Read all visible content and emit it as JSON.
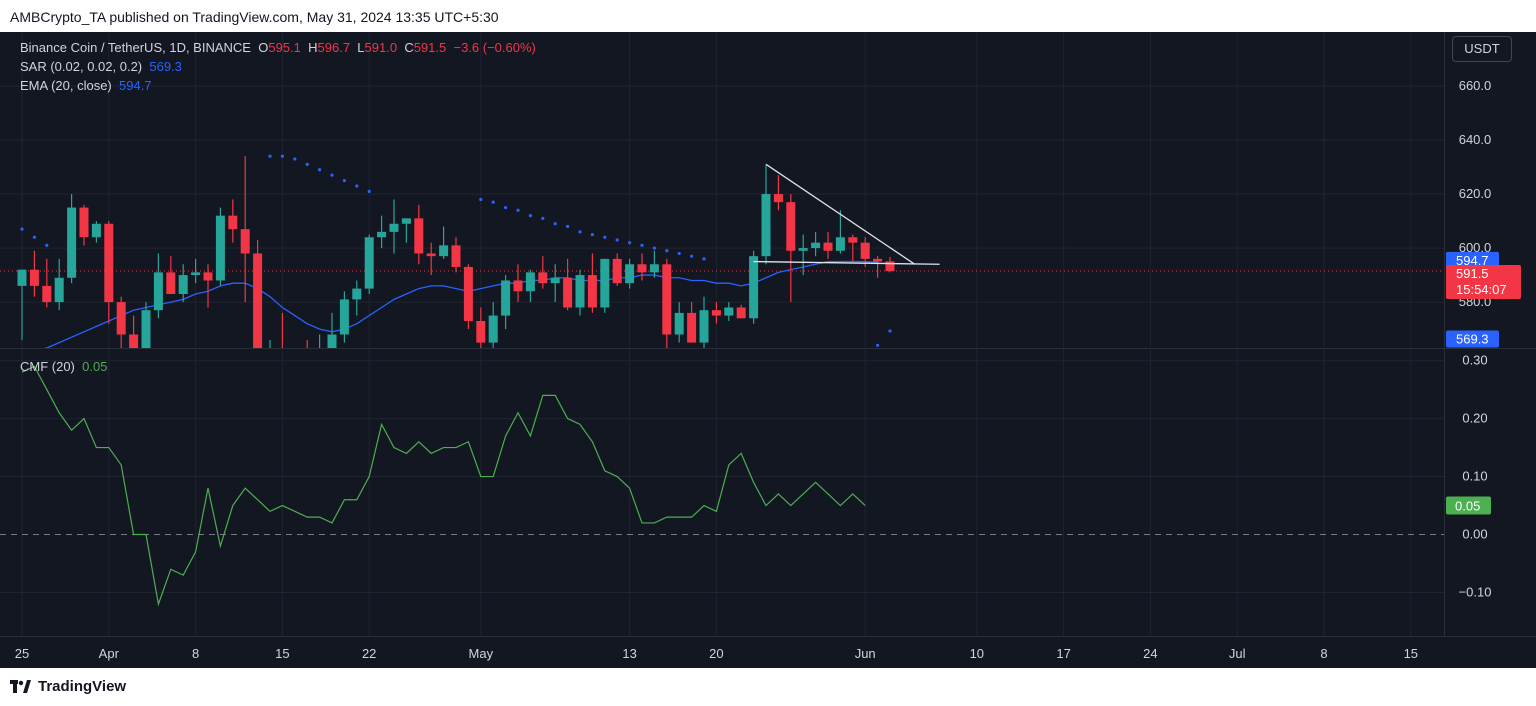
{
  "header": {
    "text": "AMBCrypto_TA published on TradingView.com, May 31, 2024 13:35 UTC+5:30"
  },
  "footer": {
    "brand": "TradingView"
  },
  "legend": {
    "symbol": "Binance Coin / TetherUS, 1D, BINANCE",
    "o_label": "O",
    "o": "595.1",
    "h_label": "H",
    "h": "596.7",
    "l_label": "L",
    "l": "591.0",
    "c_label": "C",
    "c": "591.5",
    "chg": "−3.6 (−0.60%)",
    "sar_label": "SAR (0.02, 0.02, 0.2)",
    "sar_val": "569.3",
    "ema_label": "EMA (20, close)",
    "ema_val": "594.7",
    "cmf_label": "CMF (20)",
    "cmf_val": "0.05"
  },
  "currency_button": "USDT",
  "colors": {
    "up": "#26a69a",
    "down": "#f23645",
    "ema": "#2962ff",
    "sar": "#2962ff",
    "cmf": "#4caf50",
    "bg": "#131722",
    "grid": "#1f2430"
  },
  "chart_data": [
    {
      "type": "candlestick",
      "title": "Binance Coin / TetherUS, 1D, BINANCE",
      "ylim": [
        563,
        680
      ],
      "y_ticks": [
        580.0,
        600.0,
        620.0,
        640.0,
        660.0
      ],
      "x_tick_labels": [
        "25",
        "Apr",
        "8",
        "15",
        "22",
        "May",
        "13",
        "20",
        "Jun",
        "10",
        "17",
        "24",
        "Jul",
        "8",
        "15"
      ],
      "x_tick_dates": [
        "2024-03-25",
        "2024-04-01",
        "2024-04-08",
        "2024-04-15",
        "2024-04-22",
        "2024-05-01",
        "2024-05-13",
        "2024-05-20",
        "2024-06-01",
        "2024-06-10",
        "2024-06-17",
        "2024-06-24",
        "2024-07-01",
        "2024-07-08",
        "2024-07-15"
      ],
      "ohlc": [
        {
          "d": "2024-03-25",
          "o": 586,
          "h": 592,
          "l": 566,
          "c": 592
        },
        {
          "d": "2024-03-26",
          "o": 592,
          "h": 599,
          "l": 582,
          "c": 586
        },
        {
          "d": "2024-03-27",
          "o": 586,
          "h": 596,
          "l": 578,
          "c": 580
        },
        {
          "d": "2024-03-28",
          "o": 580,
          "h": 596,
          "l": 577,
          "c": 589
        },
        {
          "d": "2024-03-29",
          "o": 589,
          "h": 620,
          "l": 587,
          "c": 615
        },
        {
          "d": "2024-03-30",
          "o": 615,
          "h": 616,
          "l": 601,
          "c": 604
        },
        {
          "d": "2024-03-31",
          "o": 604,
          "h": 610,
          "l": 602,
          "c": 609
        },
        {
          "d": "2024-04-01",
          "o": 609,
          "h": 610,
          "l": 572,
          "c": 580
        },
        {
          "d": "2024-04-02",
          "o": 580,
          "h": 582,
          "l": 560,
          "c": 568
        },
        {
          "d": "2024-04-03",
          "o": 568,
          "h": 575,
          "l": 558,
          "c": 563
        },
        {
          "d": "2024-04-04",
          "o": 563,
          "h": 580,
          "l": 560,
          "c": 577
        },
        {
          "d": "2024-04-05",
          "o": 577,
          "h": 598,
          "l": 574,
          "c": 591
        },
        {
          "d": "2024-04-06",
          "o": 591,
          "h": 597,
          "l": 583,
          "c": 583
        },
        {
          "d": "2024-04-07",
          "o": 583,
          "h": 594,
          "l": 580,
          "c": 590
        },
        {
          "d": "2024-04-08",
          "o": 590,
          "h": 596,
          "l": 587,
          "c": 591
        },
        {
          "d": "2024-04-09",
          "o": 591,
          "h": 594,
          "l": 578,
          "c": 588
        },
        {
          "d": "2024-04-10",
          "o": 588,
          "h": 615,
          "l": 586,
          "c": 612
        },
        {
          "d": "2024-04-11",
          "o": 612,
          "h": 618,
          "l": 602,
          "c": 607
        },
        {
          "d": "2024-04-12",
          "o": 607,
          "h": 634,
          "l": 580,
          "c": 598
        },
        {
          "d": "2024-04-13",
          "o": 598,
          "h": 603,
          "l": 550,
          "c": 555
        },
        {
          "d": "2024-04-14",
          "o": 555,
          "h": 566,
          "l": 542,
          "c": 562
        },
        {
          "d": "2024-04-15",
          "o": 562,
          "h": 576,
          "l": 550,
          "c": 556
        },
        {
          "d": "2024-04-16",
          "o": 556,
          "h": 562,
          "l": 545,
          "c": 558
        },
        {
          "d": "2024-04-17",
          "o": 558,
          "h": 566,
          "l": 546,
          "c": 551
        },
        {
          "d": "2024-04-18",
          "o": 551,
          "h": 568,
          "l": 548,
          "c": 563
        },
        {
          "d": "2024-04-19",
          "o": 563,
          "h": 576,
          "l": 540,
          "c": 568
        },
        {
          "d": "2024-04-20",
          "o": 568,
          "h": 584,
          "l": 565,
          "c": 581
        },
        {
          "d": "2024-04-21",
          "o": 581,
          "h": 588,
          "l": 575,
          "c": 585
        },
        {
          "d": "2024-04-22",
          "o": 585,
          "h": 605,
          "l": 583,
          "c": 604
        },
        {
          "d": "2024-04-23",
          "o": 604,
          "h": 612,
          "l": 600,
          "c": 606
        },
        {
          "d": "2024-04-24",
          "o": 606,
          "h": 618,
          "l": 598,
          "c": 609
        },
        {
          "d": "2024-04-25",
          "o": 609,
          "h": 611,
          "l": 602,
          "c": 611
        },
        {
          "d": "2024-04-26",
          "o": 611,
          "h": 616,
          "l": 594,
          "c": 598
        },
        {
          "d": "2024-04-27",
          "o": 598,
          "h": 602,
          "l": 590,
          "c": 597
        },
        {
          "d": "2024-04-28",
          "o": 597,
          "h": 608,
          "l": 596,
          "c": 601
        },
        {
          "d": "2024-04-29",
          "o": 601,
          "h": 604,
          "l": 591,
          "c": 593
        },
        {
          "d": "2024-04-30",
          "o": 593,
          "h": 594,
          "l": 570,
          "c": 573
        },
        {
          "d": "2024-05-01",
          "o": 573,
          "h": 578,
          "l": 554,
          "c": 565
        },
        {
          "d": "2024-05-02",
          "o": 565,
          "h": 580,
          "l": 560,
          "c": 575
        },
        {
          "d": "2024-05-03",
          "o": 575,
          "h": 590,
          "l": 570,
          "c": 588
        },
        {
          "d": "2024-05-04",
          "o": 588,
          "h": 594,
          "l": 580,
          "c": 584
        },
        {
          "d": "2024-05-05",
          "o": 584,
          "h": 592,
          "l": 580,
          "c": 591
        },
        {
          "d": "2024-05-06",
          "o": 591,
          "h": 597,
          "l": 585,
          "c": 587
        },
        {
          "d": "2024-05-07",
          "o": 587,
          "h": 594,
          "l": 580,
          "c": 589
        },
        {
          "d": "2024-05-08",
          "o": 589,
          "h": 596,
          "l": 577,
          "c": 578
        },
        {
          "d": "2024-05-09",
          "o": 578,
          "h": 592,
          "l": 575,
          "c": 590
        },
        {
          "d": "2024-05-10",
          "o": 590,
          "h": 598,
          "l": 576,
          "c": 578
        },
        {
          "d": "2024-05-11",
          "o": 578,
          "h": 596,
          "l": 576,
          "c": 596
        },
        {
          "d": "2024-05-12",
          "o": 596,
          "h": 598,
          "l": 586,
          "c": 587
        },
        {
          "d": "2024-05-13",
          "o": 587,
          "h": 596,
          "l": 585,
          "c": 594
        },
        {
          "d": "2024-05-14",
          "o": 594,
          "h": 598,
          "l": 588,
          "c": 591
        },
        {
          "d": "2024-05-15",
          "o": 591,
          "h": 599,
          "l": 589,
          "c": 594
        },
        {
          "d": "2024-05-16",
          "o": 594,
          "h": 596,
          "l": 560,
          "c": 568
        },
        {
          "d": "2024-05-17",
          "o": 568,
          "h": 580,
          "l": 565,
          "c": 576
        },
        {
          "d": "2024-05-18",
          "o": 576,
          "h": 580,
          "l": 566,
          "c": 565
        },
        {
          "d": "2024-05-19",
          "o": 565,
          "h": 582,
          "l": 563,
          "c": 577
        },
        {
          "d": "2024-05-20",
          "o": 577,
          "h": 580,
          "l": 572,
          "c": 575
        },
        {
          "d": "2024-05-21",
          "o": 575,
          "h": 580,
          "l": 573,
          "c": 578
        },
        {
          "d": "2024-05-22",
          "o": 578,
          "h": 579,
          "l": 574,
          "c": 574
        },
        {
          "d": "2024-05-23",
          "o": 574,
          "h": 599,
          "l": 572,
          "c": 597
        },
        {
          "d": "2024-05-24",
          "o": 597,
          "h": 631,
          "l": 594,
          "c": 620
        },
        {
          "d": "2024-05-25",
          "o": 620,
          "h": 627,
          "l": 614,
          "c": 617
        },
        {
          "d": "2024-05-26",
          "o": 617,
          "h": 620,
          "l": 580,
          "c": 599
        },
        {
          "d": "2024-05-27",
          "o": 599,
          "h": 605,
          "l": 590,
          "c": 600
        },
        {
          "d": "2024-05-28",
          "o": 600,
          "h": 606,
          "l": 597,
          "c": 602
        },
        {
          "d": "2024-05-29",
          "o": 602,
          "h": 606,
          "l": 596,
          "c": 599
        },
        {
          "d": "2024-05-30",
          "o": 599,
          "h": 614,
          "l": 598,
          "c": 604
        },
        {
          "d": "2024-05-31",
          "o": 604,
          "h": 605,
          "l": 595,
          "c": 602
        },
        {
          "d": "2024-06-01",
          "o": 602,
          "h": 604,
          "l": 593,
          "c": 596
        },
        {
          "d": "2024-06-02",
          "o": 596,
          "h": 597,
          "l": 589,
          "c": 595
        },
        {
          "d": "2024-06-03",
          "o": 595.1,
          "h": 596.7,
          "l": 591.0,
          "c": 591.5
        }
      ],
      "ema_20": [
        560,
        562,
        563,
        565,
        567,
        569,
        571,
        573,
        575,
        577,
        578,
        579,
        580,
        581,
        583,
        584,
        586,
        587,
        587,
        585,
        582,
        578,
        575,
        572,
        570,
        569,
        570,
        572,
        575,
        578,
        581,
        583,
        585,
        586,
        586,
        585,
        584,
        585,
        586,
        587,
        587,
        588,
        588,
        589,
        589,
        588,
        588,
        588,
        589,
        589,
        590,
        590,
        589,
        589,
        588,
        588,
        587,
        587,
        586,
        587,
        589,
        591,
        592,
        593,
        594,
        595,
        595,
        595,
        595,
        594.7
      ],
      "sar": [
        {
          "d": "2024-03-25",
          "v": 607
        },
        {
          "d": "2024-03-26",
          "v": 604
        },
        {
          "d": "2024-03-27",
          "v": 601
        },
        {
          "d": "2024-04-14",
          "v": 634
        },
        {
          "d": "2024-04-15",
          "v": 634
        },
        {
          "d": "2024-04-16",
          "v": 633
        },
        {
          "d": "2024-04-17",
          "v": 631
        },
        {
          "d": "2024-04-18",
          "v": 629
        },
        {
          "d": "2024-04-19",
          "v": 627
        },
        {
          "d": "2024-04-20",
          "v": 625
        },
        {
          "d": "2024-04-21",
          "v": 623
        },
        {
          "d": "2024-04-22",
          "v": 621
        },
        {
          "d": "2024-05-01",
          "v": 618
        },
        {
          "d": "2024-05-02",
          "v": 617
        },
        {
          "d": "2024-05-03",
          "v": 615
        },
        {
          "d": "2024-05-04",
          "v": 614
        },
        {
          "d": "2024-05-05",
          "v": 612
        },
        {
          "d": "2024-05-06",
          "v": 611
        },
        {
          "d": "2024-05-07",
          "v": 609
        },
        {
          "d": "2024-05-08",
          "v": 608
        },
        {
          "d": "2024-05-09",
          "v": 606
        },
        {
          "d": "2024-05-10",
          "v": 605
        },
        {
          "d": "2024-05-11",
          "v": 604
        },
        {
          "d": "2024-05-12",
          "v": 603
        },
        {
          "d": "2024-05-13",
          "v": 602
        },
        {
          "d": "2024-05-14",
          "v": 601
        },
        {
          "d": "2024-05-15",
          "v": 600
        },
        {
          "d": "2024-05-16",
          "v": 599
        },
        {
          "d": "2024-05-17",
          "v": 598
        },
        {
          "d": "2024-05-18",
          "v": 597
        },
        {
          "d": "2024-05-19",
          "v": 596
        },
        {
          "d": "2024-06-02",
          "v": 564
        },
        {
          "d": "2024-06-03",
          "v": 569.3
        }
      ],
      "trendline": {
        "from": {
          "d": "2024-05-24",
          "v": 631
        },
        "to": {
          "d": "2024-06-05",
          "v": 594
        }
      },
      "support_line": {
        "from": {
          "d": "2024-05-23",
          "v": 595
        },
        "to": {
          "d": "2024-06-07",
          "v": 594
        }
      },
      "last_price_line": 591.5,
      "price_labels": [
        {
          "text": "594.7",
          "color": "#2962ff"
        },
        {
          "text": "591.5",
          "color": "#f23645",
          "sub": "15:54:07"
        },
        {
          "text": "569.3",
          "color": "#2962ff"
        }
      ]
    },
    {
      "type": "line",
      "title": "CMF (20)",
      "ylim": [
        -0.175,
        0.32
      ],
      "y_ticks": [
        -0.1,
        0.0,
        0.1,
        0.2,
        0.3
      ],
      "y_tick_labels": [
        "−0.10",
        "0.00",
        "0.10",
        "0.20",
        "0.30"
      ],
      "zero_line": true,
      "last_value_label": "0.05",
      "series": [
        {
          "values": [
            0.28,
            0.29,
            0.25,
            0.21,
            0.18,
            0.2,
            0.15,
            0.15,
            0.12,
            0.0,
            0.0,
            -0.12,
            -0.06,
            -0.07,
            -0.03,
            0.08,
            -0.02,
            0.05,
            0.08,
            0.06,
            0.04,
            0.05,
            0.04,
            0.03,
            0.03,
            0.02,
            0.06,
            0.06,
            0.1,
            0.19,
            0.15,
            0.14,
            0.16,
            0.14,
            0.15,
            0.15,
            0.16,
            0.1,
            0.1,
            0.17,
            0.21,
            0.17,
            0.24,
            0.24,
            0.2,
            0.19,
            0.16,
            0.11,
            0.1,
            0.08,
            0.02,
            0.02,
            0.03,
            0.03,
            0.03,
            0.05,
            0.04,
            0.12,
            0.14,
            0.09,
            0.05,
            0.07,
            0.05,
            0.07,
            0.09,
            0.07,
            0.05,
            0.07,
            0.05
          ]
        }
      ]
    }
  ]
}
